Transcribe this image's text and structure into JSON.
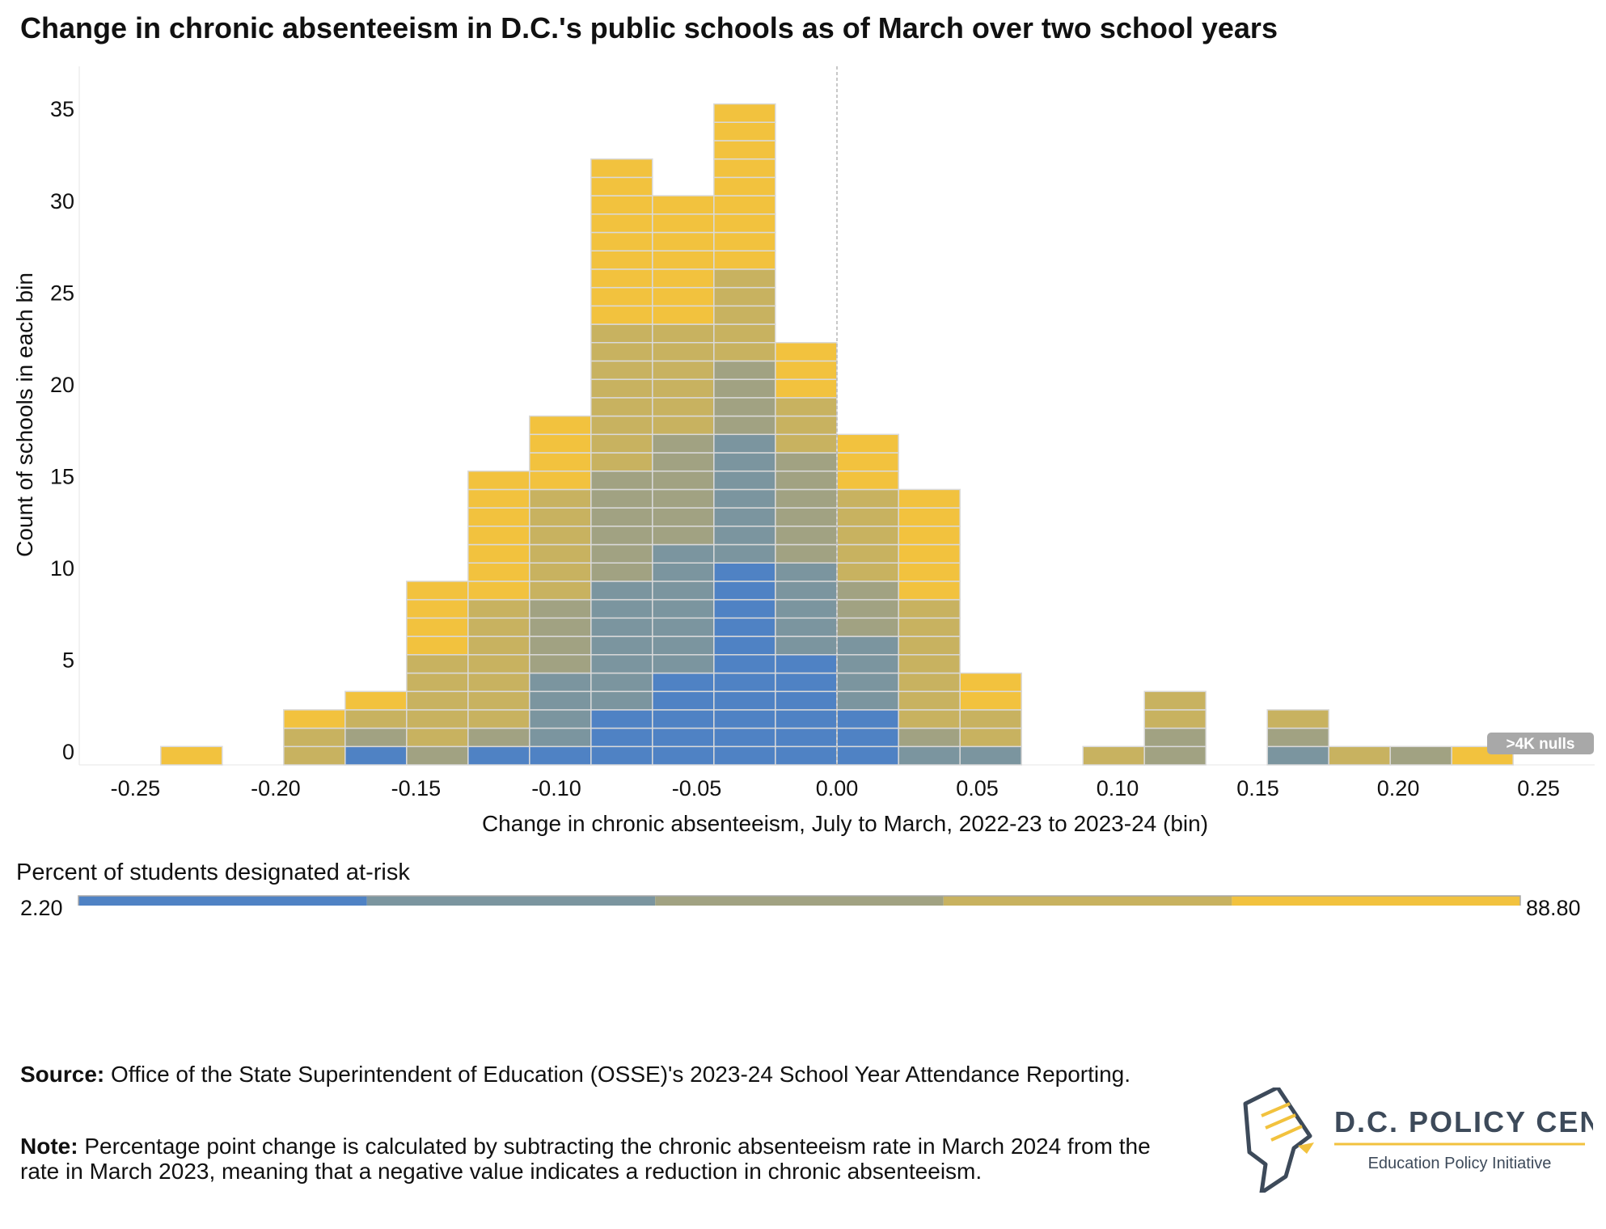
{
  "title": "Change in chronic absenteeism in D.C.'s public schools as of March over two school years",
  "chart_data": {
    "type": "bar",
    "subtype": "stacked histogram",
    "xlabel": "Change in chronic absenteeism, July to March, 2022-23 to 2023-24 (bin)",
    "ylabel": "Count of schools in each bin",
    "x_ticks": [
      "-0.25",
      "-0.20",
      "-0.15",
      "-0.10",
      "-0.05",
      "0.00",
      "0.05",
      "0.10",
      "0.15",
      "0.20",
      "0.25"
    ],
    "y_ticks": [
      "0",
      "5",
      "10",
      "15",
      "20",
      "25",
      "30",
      "35"
    ],
    "xlim": [
      -0.27,
      0.27
    ],
    "ylim": [
      -0.75,
      37.3
    ],
    "bin_width": 0.0219,
    "reference_line_x": 0.0,
    "bins": [
      {
        "x": -0.23,
        "segments": [
          1
        ],
        "colors": [
          4
        ]
      },
      {
        "x": -0.1862,
        "segments": [
          1,
          1,
          1
        ],
        "colors": [
          3,
          3,
          4
        ]
      },
      {
        "x": -0.1643,
        "segments": [
          1,
          1,
          1,
          1
        ],
        "colors": [
          0,
          2,
          3,
          4
        ]
      },
      {
        "x": -0.1424,
        "segments": [
          1,
          1,
          1,
          1,
          1,
          1,
          1,
          1,
          1,
          1
        ],
        "colors": [
          2,
          3,
          3,
          3,
          3,
          3,
          4,
          4,
          4,
          4
        ]
      },
      {
        "x": -0.1205,
        "segments": [
          1,
          1,
          1,
          1,
          1,
          1,
          1,
          1,
          1,
          1,
          1,
          1,
          1,
          1,
          1,
          1
        ],
        "colors": [
          0,
          2,
          3,
          3,
          3,
          3,
          3,
          3,
          3,
          4,
          4,
          4,
          4,
          4,
          4,
          4
        ]
      },
      {
        "x": -0.0986,
        "segments": [
          1,
          1,
          1,
          1,
          1,
          1,
          1,
          1,
          1,
          1,
          1,
          1,
          1,
          1,
          1,
          1,
          1,
          1,
          1
        ],
        "colors": [
          0,
          1,
          1,
          1,
          1,
          2,
          2,
          2,
          2,
          3,
          3,
          3,
          3,
          3,
          3,
          4,
          4,
          4,
          4
        ]
      },
      {
        "x": -0.0767,
        "segments": [
          1,
          1,
          1,
          1,
          1,
          1,
          1,
          1,
          1,
          1,
          1,
          1,
          1,
          1,
          1,
          1,
          1,
          1,
          1,
          1,
          1,
          1,
          1,
          1,
          1,
          1,
          1,
          1,
          1,
          1,
          1,
          1,
          1
        ],
        "colors": [
          0,
          0,
          0,
          1,
          1,
          1,
          1,
          1,
          1,
          1,
          2,
          2,
          2,
          2,
          2,
          2,
          3,
          3,
          3,
          3,
          3,
          3,
          3,
          3,
          4,
          4,
          4,
          4,
          4,
          4,
          4,
          4,
          4
        ]
      },
      {
        "x": -0.0548,
        "segments": [
          1,
          1,
          1,
          1,
          1,
          1,
          1,
          1,
          1,
          1,
          1,
          1,
          1,
          1,
          1,
          1,
          1,
          1,
          1,
          1,
          1,
          1,
          1,
          1,
          1,
          1,
          1,
          1,
          1,
          1,
          1
        ],
        "colors": [
          0,
          0,
          0,
          0,
          0,
          1,
          1,
          1,
          1,
          1,
          1,
          1,
          2,
          2,
          2,
          2,
          2,
          2,
          3,
          3,
          3,
          3,
          3,
          3,
          4,
          4,
          4,
          4,
          4,
          4,
          4
        ]
      },
      {
        "x": -0.0329,
        "segments": [
          1,
          1,
          1,
          1,
          1,
          1,
          1,
          1,
          1,
          1,
          1,
          1,
          1,
          1,
          1,
          1,
          1,
          1,
          1,
          1,
          1,
          1,
          1,
          1,
          1,
          1,
          1,
          1,
          1,
          1,
          1,
          1,
          1,
          1,
          1,
          1
        ],
        "colors": [
          0,
          0,
          0,
          0,
          0,
          0,
          0,
          0,
          0,
          0,
          0,
          1,
          1,
          1,
          1,
          1,
          1,
          1,
          2,
          2,
          2,
          2,
          3,
          3,
          3,
          3,
          3,
          4,
          4,
          4,
          4,
          4,
          4,
          4,
          4,
          4
        ]
      },
      {
        "x": -0.011,
        "segments": [
          1,
          1,
          1,
          1,
          1,
          1,
          1,
          1,
          1,
          1,
          1,
          1,
          1,
          1,
          1,
          1,
          1,
          1,
          1,
          1,
          1,
          1,
          1
        ],
        "colors": [
          0,
          0,
          0,
          0,
          0,
          0,
          1,
          1,
          1,
          1,
          1,
          2,
          2,
          2,
          2,
          2,
          2,
          3,
          3,
          3,
          4,
          4,
          4
        ]
      },
      {
        "x": 0.011,
        "segments": [
          1,
          1,
          1,
          1,
          1,
          1,
          1,
          1,
          1,
          1,
          1,
          1,
          1,
          1,
          1,
          1,
          1,
          1
        ],
        "colors": [
          0,
          0,
          0,
          1,
          1,
          1,
          1,
          2,
          2,
          2,
          3,
          3,
          3,
          3,
          3,
          4,
          4,
          4
        ]
      },
      {
        "x": 0.0329,
        "segments": [
          1,
          1,
          1,
          1,
          1,
          1,
          1,
          1,
          1,
          1,
          1,
          1,
          1,
          1,
          1
        ],
        "colors": [
          1,
          2,
          3,
          3,
          3,
          3,
          3,
          3,
          3,
          4,
          4,
          4,
          4,
          4,
          4
        ]
      },
      {
        "x": 0.0548,
        "segments": [
          1,
          1,
          1,
          1,
          1
        ],
        "colors": [
          1,
          3,
          3,
          4,
          4
        ]
      },
      {
        "x": 0.0986,
        "segments": [
          1
        ],
        "colors": [
          3
        ]
      },
      {
        "x": 0.1205,
        "segments": [
          1,
          1,
          1,
          1
        ],
        "colors": [
          2,
          2,
          3,
          3
        ]
      },
      {
        "x": 0.1643,
        "segments": [
          1,
          1,
          1
        ],
        "colors": [
          1,
          2,
          3
        ]
      },
      {
        "x": 0.1862,
        "segments": [
          1
        ],
        "colors": [
          3
        ]
      },
      {
        "x": 0.2081,
        "segments": [
          1
        ],
        "colors": [
          2
        ]
      },
      {
        "x": 0.23,
        "segments": [
          1
        ],
        "colors": [
          4
        ]
      }
    ],
    "color_scale": [
      "#4f82c4",
      "#7b959f",
      "#a1a282",
      "#c8b260",
      "#f2c23e"
    ],
    "legend": {
      "title": "Percent of students designated at-risk",
      "min_label": "2.20",
      "max_label": "88.80"
    },
    "nulls_badge": ">4K nulls"
  },
  "footer": {
    "source_label": "Source:",
    "source_text": " Office of the State Superintendent of Education (OSSE)'s 2023-24 School Year Attendance Reporting.",
    "note_label": "Note:",
    "note_text": " Percentage point change is calculated by subtracting the chronic absenteeism rate in March 2024 from the rate in March 2023, meaning that a negative value indicates a reduction in chronic absenteeism."
  },
  "logo": {
    "name": "D.C. POLICY CENTER",
    "tagline": "Education Policy Initiative"
  },
  "colors": {
    "text": "#111111",
    "logo_text": "#3d4a5a",
    "logo_gold": "#f2c23e",
    "badge_bg": "#a8a8a8",
    "cell_border": "#d9d9d9"
  }
}
